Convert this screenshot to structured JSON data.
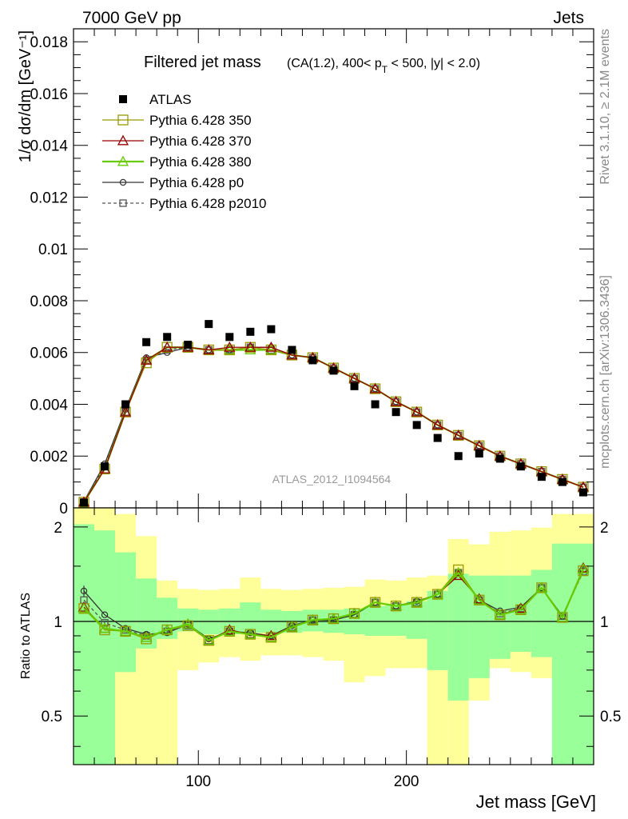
{
  "header": {
    "left": "7000 GeV pp",
    "right": "Jets",
    "side_top": "Rivet 3.1.10, ≥ 2.1M events",
    "side_bottom": "mcplots.cern.ch [arXiv:1306.3436]",
    "watermark": "ATLAS_2012_I1094564"
  },
  "chart_data": [
    {
      "type": "scatter",
      "title_main": "Filtered jet mass",
      "title_cuts_pre": "(CA(1.2), 400< p",
      "title_cuts_sub": "T",
      "title_cuts_post": " < 500, |y| < 2.0)",
      "ylabel": "1/σ dσ/dm [GeV⁻¹]",
      "xlabel": "",
      "xlim": [
        40,
        290
      ],
      "ylim": [
        0,
        0.0185
      ],
      "yticks": [
        0,
        0.002,
        0.004,
        0.006,
        0.008,
        0.01,
        0.012,
        0.014,
        0.016,
        0.018
      ],
      "ytick_labels": [
        "0",
        "0.002",
        "0.004",
        "0.006",
        "0.008",
        "0.01",
        "0.012",
        "0.014",
        "0.016",
        "0.018"
      ],
      "legend_position": "top-left",
      "x": [
        45,
        55,
        65,
        75,
        85,
        95,
        105,
        115,
        125,
        135,
        145,
        155,
        165,
        175,
        185,
        195,
        205,
        215,
        225,
        235,
        245,
        255,
        265,
        275,
        285
      ],
      "series": [
        {
          "name": "ATLAS",
          "color": "#000000",
          "marker": "filled-square",
          "values": [
            0.0002,
            0.0016,
            0.004,
            0.0064,
            0.0066,
            0.0063,
            0.0071,
            0.0066,
            0.0068,
            0.0069,
            0.0061,
            0.0057,
            0.0053,
            0.0047,
            0.004,
            0.0037,
            0.0032,
            0.0027,
            0.002,
            0.0021,
            0.0019,
            0.0016,
            0.0012,
            0.001,
            0.0006
          ]
        },
        {
          "name": "Pythia 6.428 350",
          "color": "#999900",
          "marker": "open-square",
          "values": [
            0.00022,
            0.0015,
            0.0037,
            0.0056,
            0.0062,
            0.0062,
            0.0061,
            0.0061,
            0.0062,
            0.0061,
            0.0059,
            0.0058,
            0.0054,
            0.005,
            0.0046,
            0.0041,
            0.0037,
            0.0032,
            0.0028,
            0.0024,
            0.002,
            0.0017,
            0.0014,
            0.0011,
            0.0008
          ]
        },
        {
          "name": "Pythia 6.428 370",
          "color": "#990000",
          "marker": "open-triangle",
          "values": [
            0.00022,
            0.0015,
            0.0037,
            0.0057,
            0.0062,
            0.0062,
            0.0061,
            0.0062,
            0.0062,
            0.0062,
            0.0059,
            0.0058,
            0.0054,
            0.005,
            0.0046,
            0.0041,
            0.0037,
            0.0032,
            0.0028,
            0.0024,
            0.002,
            0.0017,
            0.0014,
            0.0011,
            0.0008
          ]
        },
        {
          "name": "Pythia 6.428 380",
          "color": "#66cc00",
          "marker": "open-triangle",
          "values": [
            0.00022,
            0.0015,
            0.0037,
            0.0057,
            0.0062,
            0.0062,
            0.0061,
            0.0061,
            0.0061,
            0.0061,
            0.0059,
            0.0058,
            0.0054,
            0.005,
            0.0046,
            0.0041,
            0.0037,
            0.0032,
            0.0028,
            0.0024,
            0.002,
            0.0017,
            0.0014,
            0.0011,
            0.0008
          ]
        },
        {
          "name": "Pythia 6.428 p0",
          "color": "#333333",
          "marker": "open-circle",
          "values": [
            0.00025,
            0.0017,
            0.0038,
            0.0058,
            0.006,
            0.0062,
            0.0061,
            0.0061,
            0.0062,
            0.0062,
            0.0059,
            0.0058,
            0.0054,
            0.005,
            0.0046,
            0.0041,
            0.0037,
            0.0032,
            0.0028,
            0.0024,
            0.002,
            0.0017,
            0.0014,
            0.0011,
            0.0008
          ]
        },
        {
          "name": "Pythia 6.428 p2010",
          "color": "#555555",
          "marker": "open-square-dashed",
          "values": [
            0.00023,
            0.0016,
            0.0037,
            0.0057,
            0.0061,
            0.0062,
            0.0061,
            0.0061,
            0.0062,
            0.0061,
            0.0059,
            0.0058,
            0.0054,
            0.005,
            0.0046,
            0.0041,
            0.0037,
            0.0032,
            0.0028,
            0.0024,
            0.002,
            0.0017,
            0.0014,
            0.0011,
            0.0008
          ]
        }
      ]
    },
    {
      "type": "line",
      "ylabel": "Ratio to ATLAS",
      "xlabel": "Jet mass [GeV]",
      "xlim": [
        40,
        290
      ],
      "ylim": [
        0.35,
        2.3
      ],
      "xticks": [
        100,
        200
      ],
      "xtick_labels": [
        "100",
        "200"
      ],
      "yticks": [
        0.5,
        1,
        2
      ],
      "ytick_labels": [
        "0.5",
        "1",
        "2"
      ],
      "x": [
        45,
        55,
        65,
        75,
        85,
        95,
        105,
        115,
        125,
        135,
        145,
        155,
        165,
        175,
        185,
        195,
        205,
        215,
        225,
        235,
        245,
        255,
        265,
        275,
        285
      ],
      "band_yellow_lo": [
        0.35,
        0.35,
        0.35,
        0.35,
        0.35,
        0.7,
        0.74,
        0.77,
        0.75,
        0.78,
        0.78,
        0.77,
        0.75,
        0.64,
        0.67,
        0.71,
        0.71,
        0.35,
        0.35,
        0.56,
        0.71,
        0.69,
        0.66,
        0.35,
        0.42
      ],
      "band_yellow_hi": [
        2.3,
        2.3,
        2.2,
        1.87,
        1.35,
        1.27,
        1.26,
        1.27,
        1.38,
        1.27,
        1.26,
        1.27,
        1.28,
        1.29,
        1.36,
        1.35,
        1.38,
        1.4,
        1.83,
        1.76,
        1.93,
        1.95,
        1.99,
        2.2,
        2.2
      ],
      "band_green_lo": [
        0.35,
        0.35,
        0.69,
        0.82,
        0.88,
        0.93,
        0.91,
        0.91,
        0.92,
        0.92,
        0.92,
        0.93,
        0.92,
        0.91,
        0.9,
        0.9,
        0.88,
        0.7,
        0.56,
        0.66,
        0.76,
        0.8,
        0.77,
        0.35,
        0.35
      ],
      "band_green_hi": [
        2.04,
        1.95,
        1.66,
        1.37,
        1.19,
        1.1,
        1.09,
        1.1,
        1.15,
        1.09,
        1.08,
        1.09,
        1.09,
        1.1,
        1.12,
        1.14,
        1.16,
        1.25,
        1.42,
        1.4,
        1.4,
        1.4,
        1.46,
        1.77,
        1.77
      ],
      "series": [
        {
          "name": "Pythia 6.428 350",
          "color": "#999900",
          "marker": "open-square",
          "values": [
            1.1,
            0.94,
            0.93,
            0.88,
            0.94,
            0.97,
            0.87,
            0.93,
            0.91,
            0.89,
            0.96,
            1.01,
            1.02,
            1.06,
            1.15,
            1.12,
            1.15,
            1.22,
            1.46,
            1.17,
            1.05,
            1.09,
            1.28,
            1.03,
            1.45
          ]
        },
        {
          "name": "Pythia 6.428 370",
          "color": "#990000",
          "marker": "open-triangle",
          "values": [
            1.11,
            0.95,
            0.93,
            0.89,
            0.94,
            0.98,
            0.87,
            0.94,
            0.91,
            0.9,
            0.96,
            1.01,
            1.02,
            1.06,
            1.15,
            1.12,
            1.15,
            1.22,
            1.4,
            1.18,
            1.05,
            1.1,
            1.28,
            1.03,
            1.48
          ]
        },
        {
          "name": "Pythia 6.428 380",
          "color": "#66cc00",
          "marker": "open-triangle",
          "values": [
            1.1,
            0.95,
            0.93,
            0.89,
            0.94,
            0.98,
            0.87,
            0.93,
            0.91,
            0.89,
            0.96,
            1.01,
            1.02,
            1.06,
            1.15,
            1.12,
            1.15,
            1.22,
            1.43,
            1.17,
            1.05,
            1.09,
            1.28,
            1.03,
            1.47
          ]
        },
        {
          "name": "Pythia 6.428 p0",
          "color": "#333333",
          "marker": "open-circle",
          "values": [
            1.25,
            1.05,
            0.95,
            0.91,
            0.92,
            0.98,
            0.88,
            0.93,
            0.92,
            0.9,
            0.97,
            1.01,
            1.01,
            1.05,
            1.15,
            1.12,
            1.16,
            1.22,
            1.43,
            1.17,
            1.08,
            1.11,
            1.28,
            1.04,
            1.46
          ]
        },
        {
          "name": "Pythia 6.428 p2010",
          "color": "#555555",
          "marker": "open-square-dashed",
          "values": [
            1.17,
            0.99,
            0.94,
            0.9,
            0.93,
            0.97,
            0.87,
            0.93,
            0.91,
            0.9,
            0.96,
            1.01,
            1.01,
            1.05,
            1.15,
            1.12,
            1.15,
            1.22,
            1.43,
            1.17,
            1.06,
            1.1,
            1.28,
            1.04,
            1.44
          ]
        }
      ]
    }
  ]
}
